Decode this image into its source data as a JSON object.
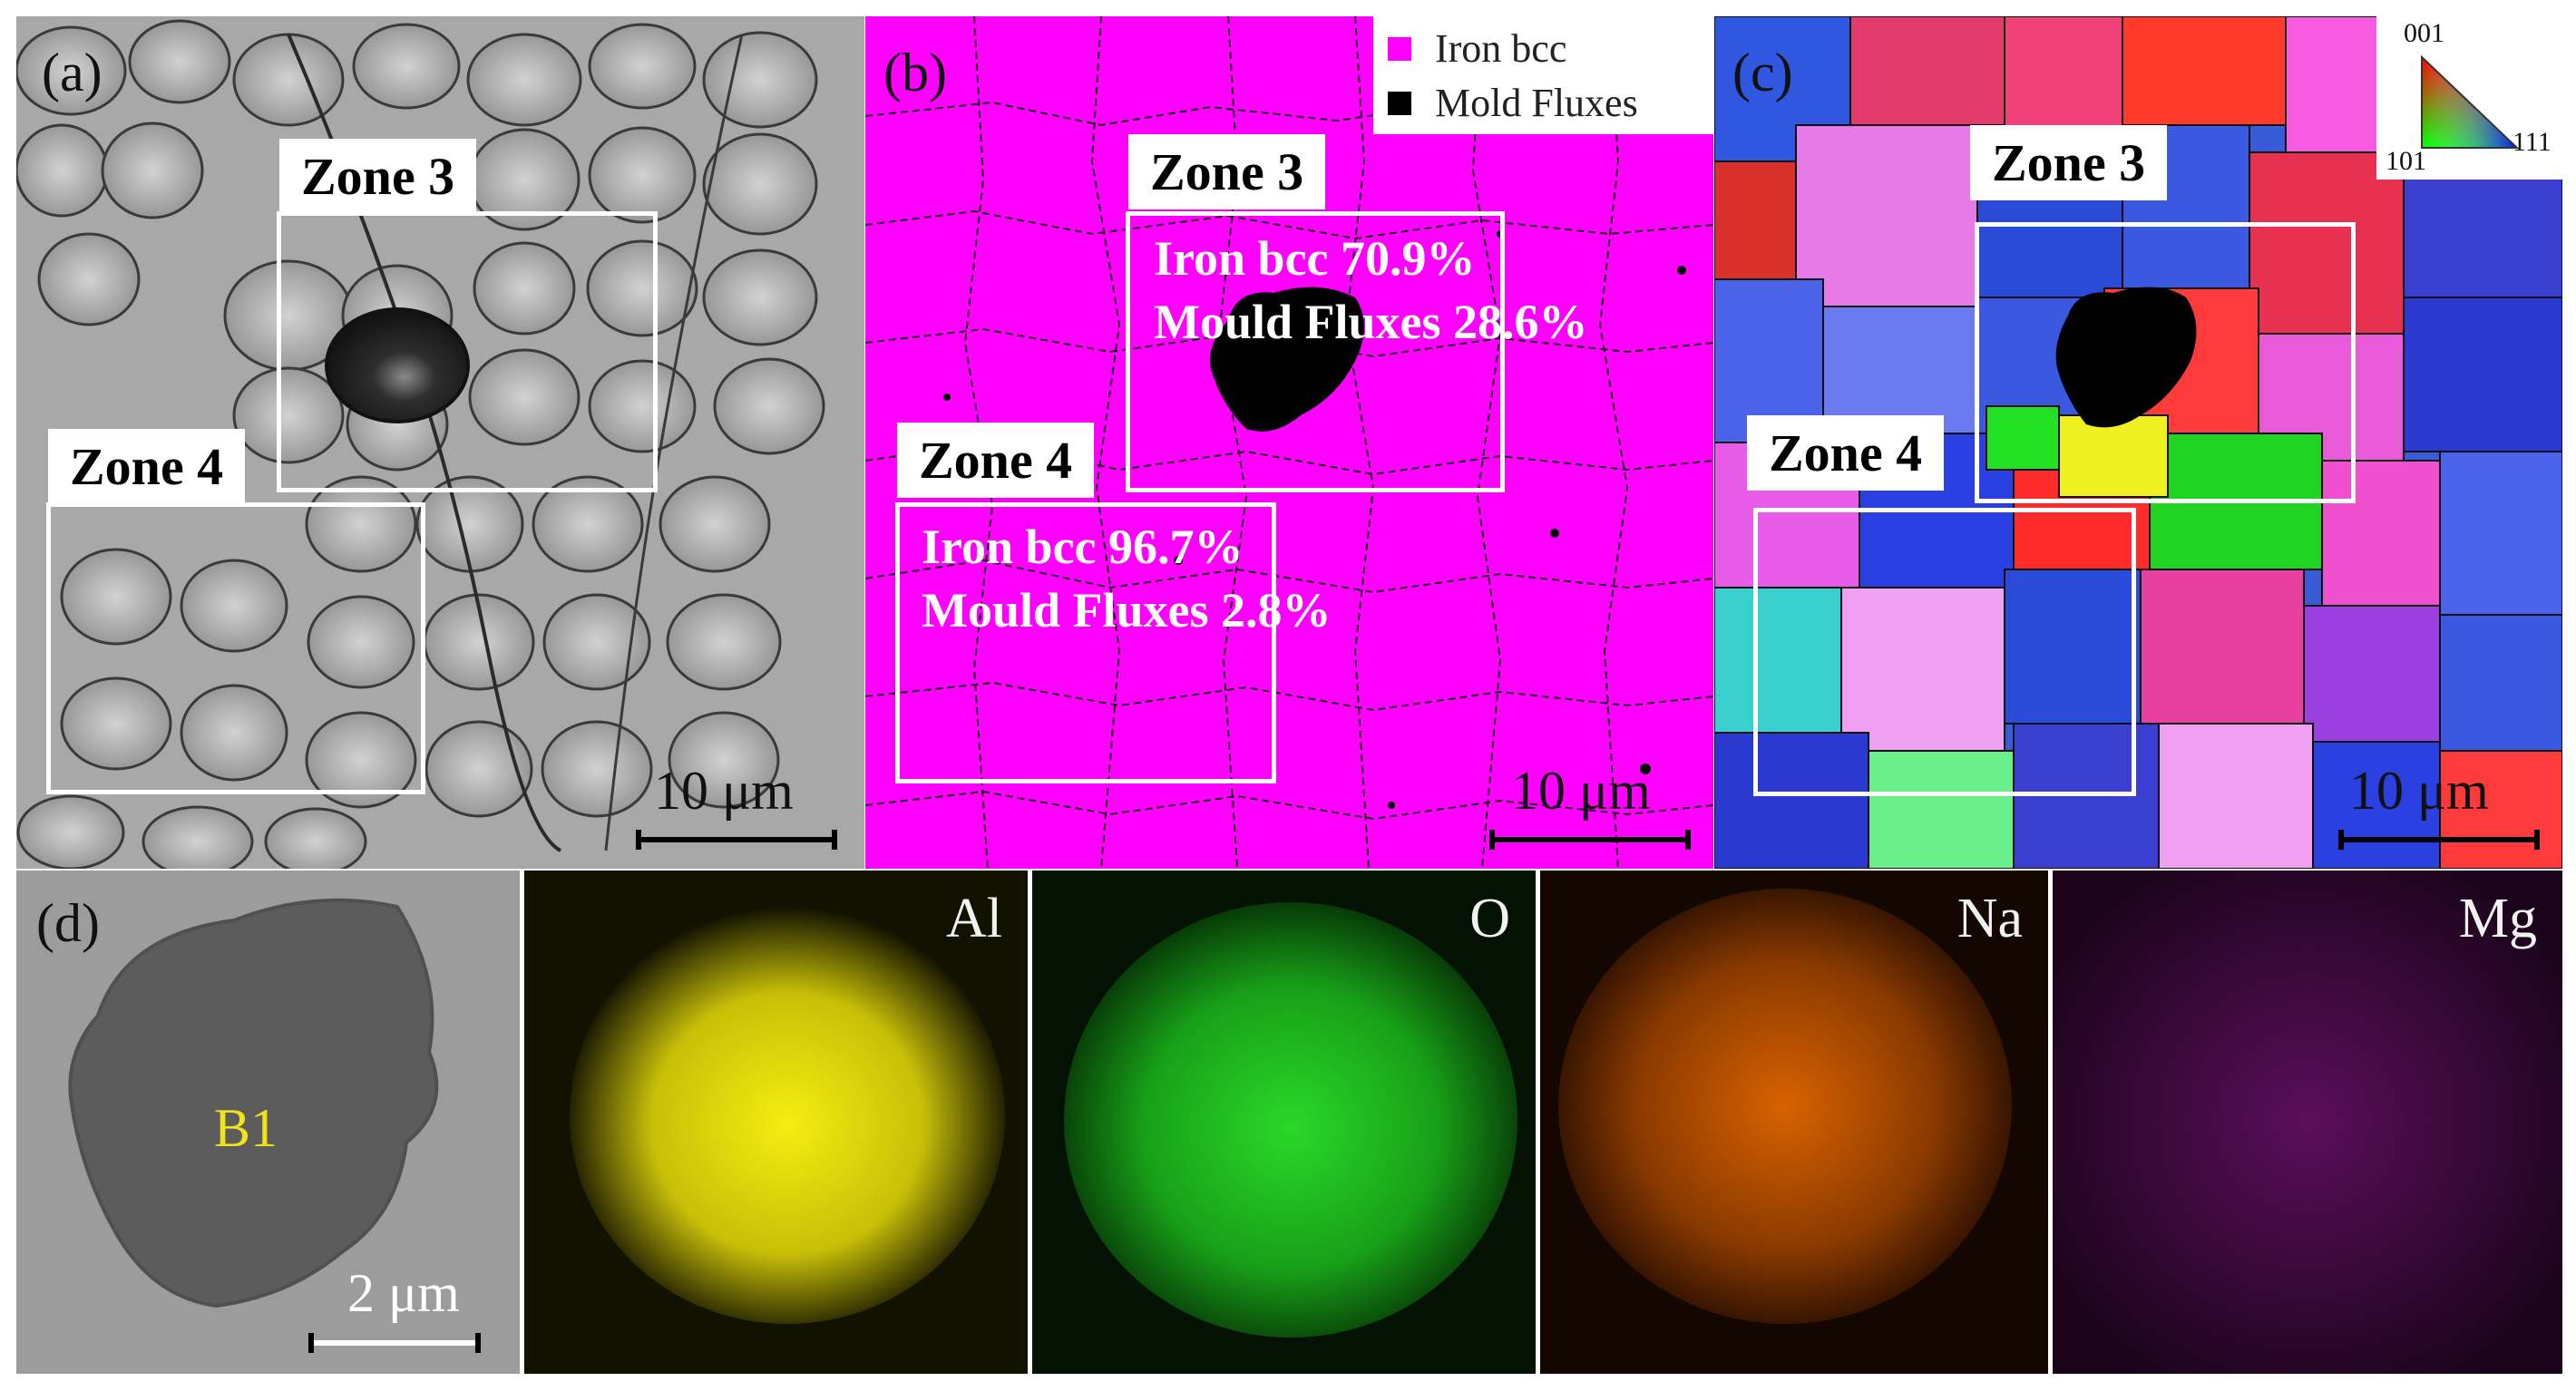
{
  "panels": {
    "a": {
      "label": "(a)",
      "zones": [
        {
          "name": "Zone 3"
        },
        {
          "name": "Zone 4"
        }
      ],
      "scale_bar": "10 μm"
    },
    "b": {
      "label": "(b)",
      "legend": [
        {
          "label": "Iron bcc",
          "color": "#ff00ff"
        },
        {
          "label": "Mold Fluxes",
          "color": "#000000"
        }
      ],
      "zones": [
        {
          "name": "Zone 3",
          "line1": "Iron bcc 70.9%",
          "line2": "Mould Fluxes 28.6%"
        },
        {
          "name": "Zone 4",
          "line1": "Iron bcc 96.7%",
          "line2": "Mould Fluxes 2.8%"
        }
      ],
      "scale_bar": "10 μm"
    },
    "c": {
      "label": "(c)",
      "ipf_key": {
        "top": "001",
        "left": "101",
        "right": "111"
      },
      "zones": [
        {
          "name": "Zone 3"
        },
        {
          "name": "Zone 4"
        }
      ],
      "scale_bar": "10 μm"
    },
    "d": {
      "label": "(d)",
      "particle_label": "B1",
      "scale_bar": "2 μm",
      "maps": [
        {
          "element": "Al",
          "color": "#e6e000"
        },
        {
          "element": "O",
          "color": "#22d422"
        },
        {
          "element": "Na",
          "color": "#e56a00"
        },
        {
          "element": "Mg",
          "color": "#b01fb0"
        }
      ]
    }
  }
}
